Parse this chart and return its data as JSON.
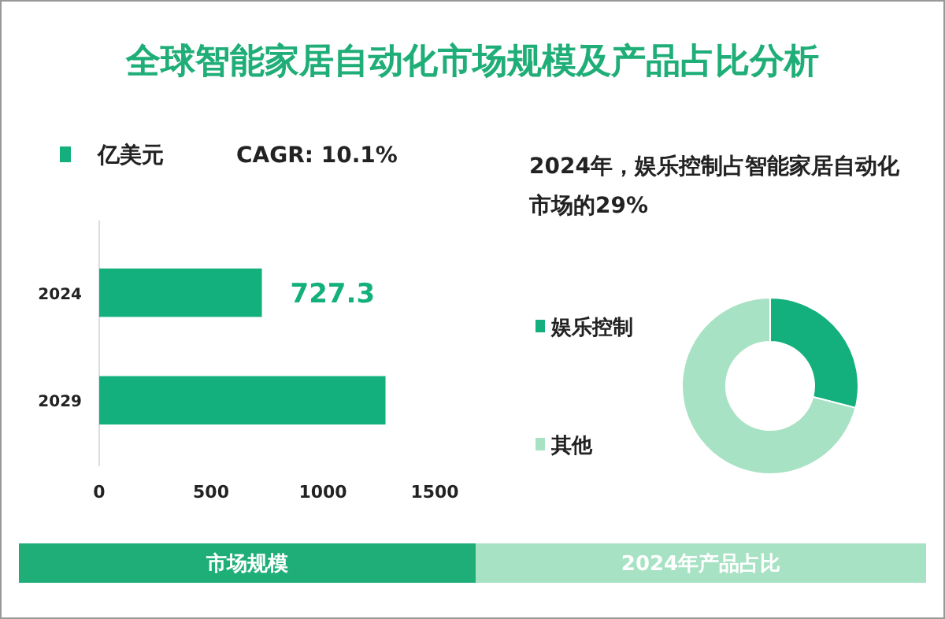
{
  "chart_data": [
    {
      "type": "bar",
      "orientation": "horizontal",
      "title": "全球智能家居自动化市场规模及产品占比分析",
      "categories": [
        "2024",
        "2029"
      ],
      "series": [
        {
          "name": "亿美元",
          "color": "#13b07d",
          "values": [
            727.3,
            1280
          ],
          "value_labels": [
            "727.3",
            null
          ]
        }
      ],
      "xlim": [
        0,
        1500
      ],
      "xticks": [
        0,
        500,
        1000,
        1500
      ],
      "legend": "top left",
      "grid": false,
      "annotations": [
        "CAGR: 10.1%",
        "市场规模"
      ]
    },
    {
      "type": "donut",
      "title": "2024年，娱乐控制占智能家居自动化市场的29%",
      "categories": [
        "娱乐控制",
        "其他"
      ],
      "values": [
        29,
        71
      ],
      "colors": [
        "#13b07d",
        "#a8e2c4"
      ],
      "legend": "left",
      "annotations": [
        "2024年产品占比"
      ]
    }
  ]
}
